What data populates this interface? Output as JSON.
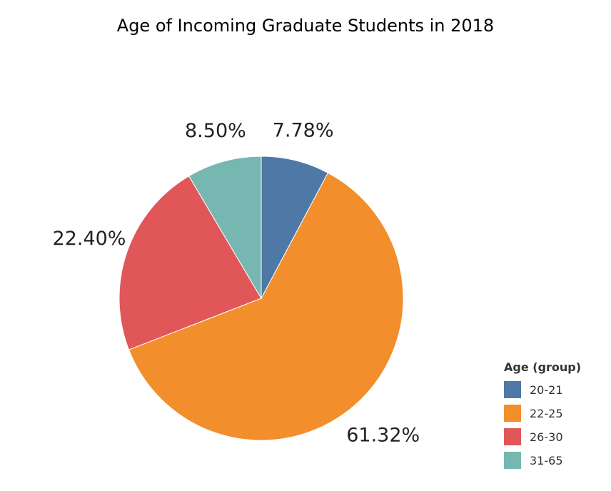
{
  "chart_data": {
    "type": "pie",
    "title": "Age of Incoming Graduate Students in 2018",
    "categories": [
      "20-21",
      "22-25",
      "26-30",
      "31-65"
    ],
    "values": [
      7.78,
      61.32,
      22.4,
      8.5
    ],
    "value_labels": [
      "7.78%",
      "61.32%",
      "22.40%",
      "8.50%"
    ],
    "colors": [
      "#4E79A7",
      "#F28E2B",
      "#E15759",
      "#76B7B2"
    ],
    "start_angle": "12 o'clock",
    "direction": "clockwise",
    "legend": {
      "title": "Age (group)",
      "placement": "bottom-right"
    }
  }
}
